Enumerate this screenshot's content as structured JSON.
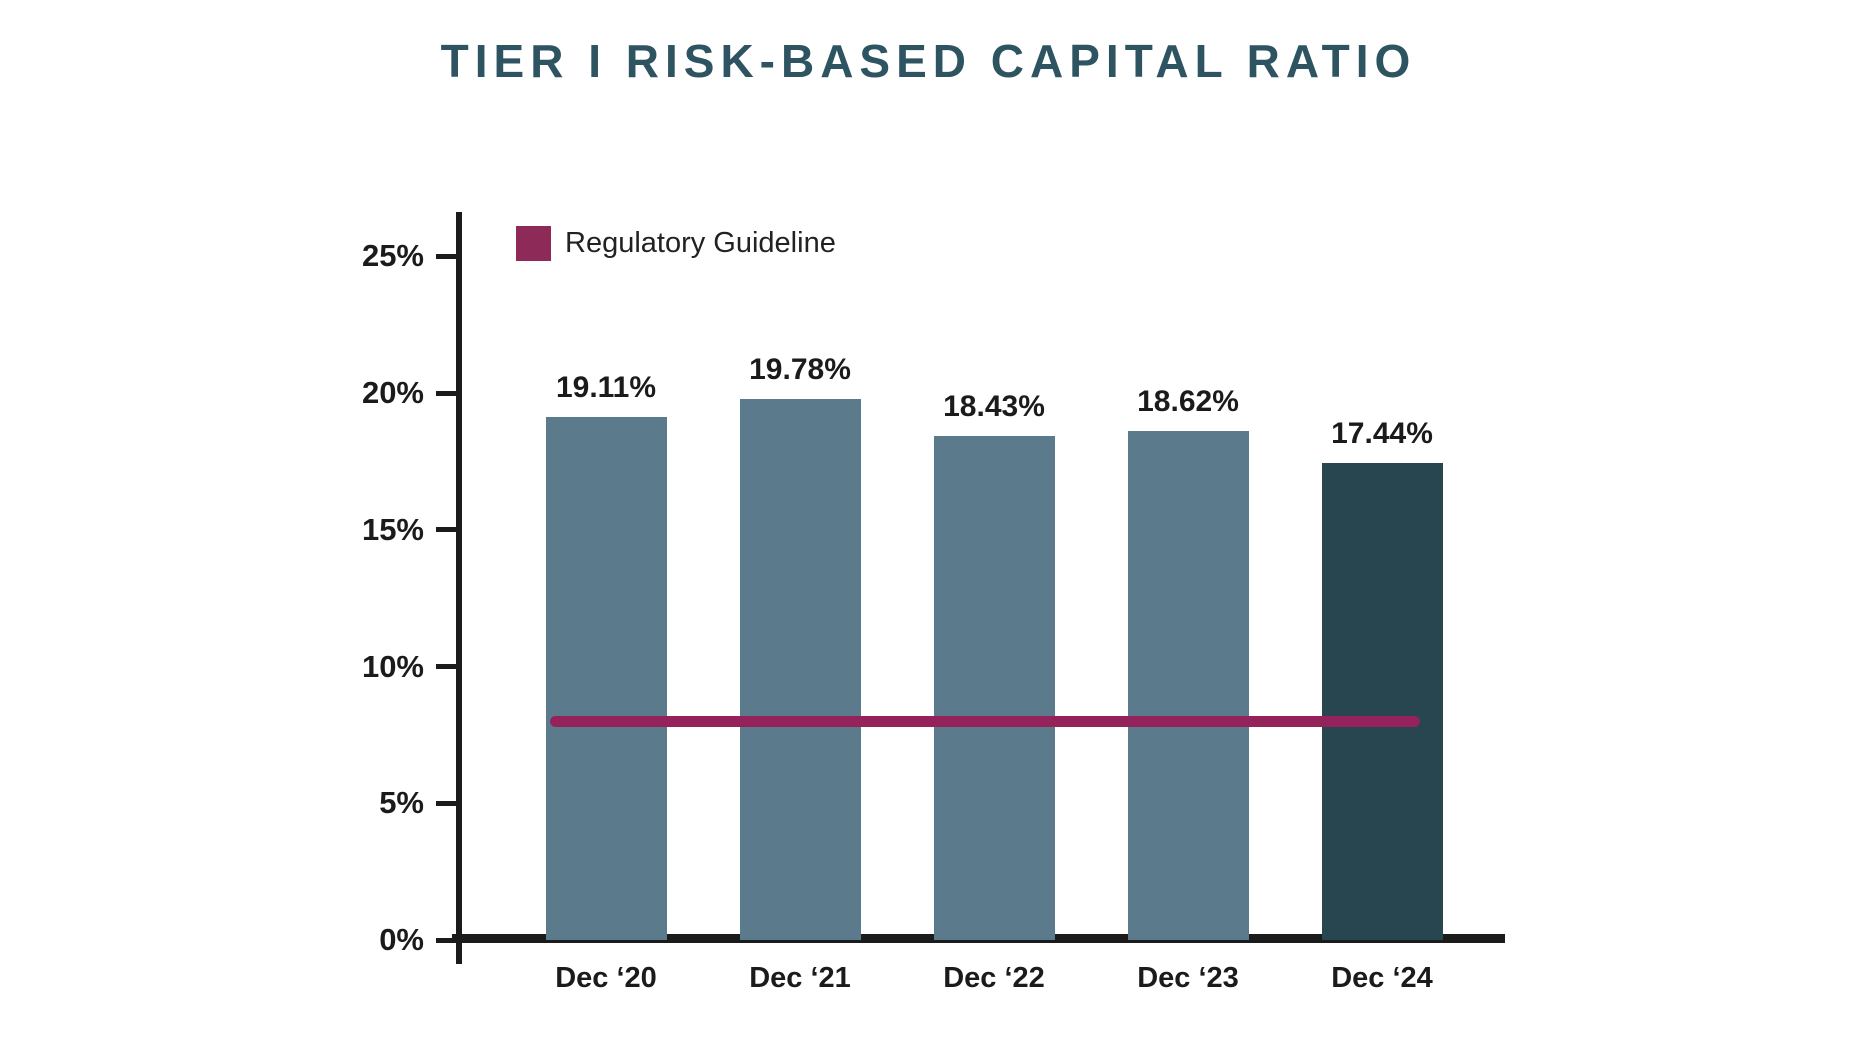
{
  "title": "TIER I RISK-BASED CAPITAL RATIO",
  "title_color": "#2E5461",
  "chart_data": {
    "type": "bar",
    "title": "TIER I RISK-BASED CAPITAL RATIO",
    "categories": [
      "Dec ‘20",
      "Dec ‘21",
      "Dec ‘22",
      "Dec ‘23",
      "Dec ‘24"
    ],
    "values": [
      19.11,
      19.78,
      18.43,
      18.62,
      17.44
    ],
    "value_labels": [
      "19.11%",
      "19.78%",
      "18.43%",
      "18.62%",
      "17.44%"
    ],
    "bar_colors": [
      "#5B7A8C",
      "#5B7A8C",
      "#5B7A8C",
      "#5B7A8C",
      "#28464F"
    ],
    "xlabel": "",
    "ylabel": "",
    "ylim": [
      0,
      27
    ],
    "y_ticks": [
      "0%",
      "5%",
      "10%",
      "15%",
      "20%",
      "25%"
    ],
    "y_tick_values": [
      0,
      5,
      10,
      15,
      20,
      25
    ],
    "grid": false,
    "legend_position": "top-left-inside",
    "guideline": {
      "label": "Regulatory Guideline",
      "value": 8,
      "color": "#93235A",
      "swatch_color": "#8E2A57"
    }
  }
}
